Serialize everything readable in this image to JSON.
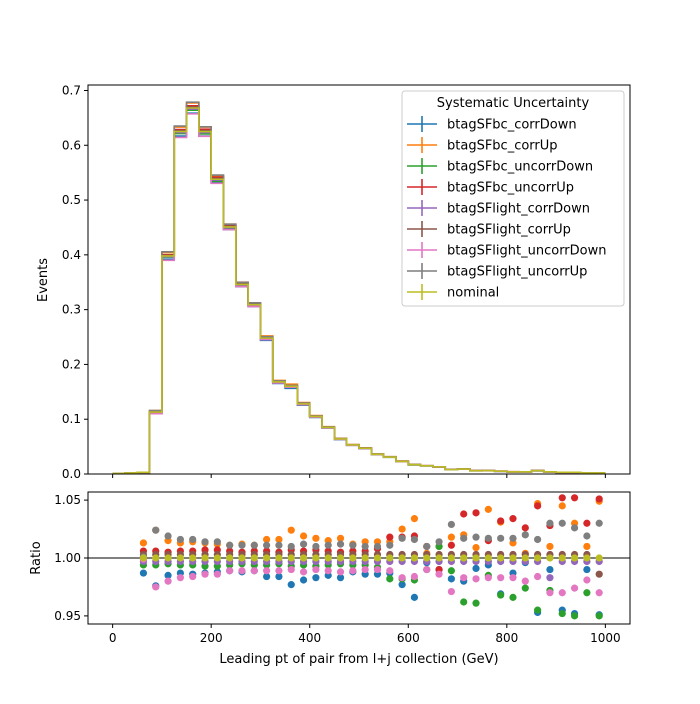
{
  "chart_data": [
    {
      "type": "line",
      "subtype": "step-histogram",
      "ylabel": "Events",
      "xlim": [
        -50,
        1050
      ],
      "ylim": [
        0,
        0.71
      ],
      "xticks": [
        0,
        200,
        400,
        600,
        800,
        1000
      ],
      "yticks": [
        "0.0",
        "0.1",
        "0.2",
        "0.3",
        "0.4",
        "0.5",
        "0.6",
        "0.7"
      ],
      "bin_edges": [
        0,
        25,
        50,
        75,
        100,
        125,
        150,
        175,
        200,
        225,
        250,
        275,
        300,
        325,
        350,
        375,
        400,
        425,
        450,
        475,
        500,
        525,
        550,
        575,
        600,
        625,
        650,
        675,
        700,
        725,
        750,
        775,
        800,
        825,
        850,
        875,
        900,
        925,
        950,
        975,
        1000
      ],
      "nominal": [
        0.001,
        0.002,
        0.003,
        0.113,
        0.398,
        0.625,
        0.668,
        0.625,
        0.538,
        0.451,
        0.346,
        0.309,
        0.248,
        0.168,
        0.16,
        0.128,
        0.105,
        0.085,
        0.064,
        0.053,
        0.047,
        0.036,
        0.031,
        0.023,
        0.017,
        0.015,
        0.013,
        0.008,
        0.009,
        0.006,
        0.006,
        0.005,
        0.004,
        0.004,
        0.006,
        0.004,
        0.003,
        0.003,
        0.002,
        0.002
      ],
      "legend": {
        "title": "Systematic Uncertainty",
        "placement": "upper right",
        "entries": [
          "btagSFbc_corrDown",
          "btagSFbc_corrUp",
          "btagSFbc_uncorrDown",
          "btagSFbc_uncorrUp",
          "btagSFlight_corrDown",
          "btagSFlight_corrUp",
          "btagSFlight_uncorrDown",
          "btagSFlight_uncorrUp",
          "nominal"
        ]
      }
    },
    {
      "type": "scatter",
      "xlabel": "Leading pt of pair from l+j collection (GeV)",
      "ylabel": "Ratio",
      "xlim": [
        -50,
        1050
      ],
      "ylim": [
        0.943,
        1.057
      ],
      "xticks": [
        0,
        200,
        400,
        600,
        800,
        1000
      ],
      "yticks": [
        "0.95",
        "1.00",
        "1.05"
      ],
      "reference_line": 1.0,
      "x": [
        62.5,
        87.5,
        112.5,
        137.5,
        162.5,
        187.5,
        212.5,
        237.5,
        262.5,
        287.5,
        312.5,
        337.5,
        362.5,
        387.5,
        412.5,
        437.5,
        462.5,
        487.5,
        512.5,
        537.5,
        562.5,
        587.5,
        612.5,
        637.5,
        662.5,
        687.5,
        712.5,
        737.5,
        762.5,
        787.5,
        812.5,
        837.5,
        862.5,
        887.5,
        912.5,
        937.5,
        962.5,
        987.5
      ],
      "series": [
        {
          "name": "btagSFbc_corrDown",
          "color": "#1f77b4",
          "values": [
            0.987,
            0.976,
            0.985,
            0.987,
            0.986,
            0.987,
            0.988,
            0.989,
            0.988,
            0.989,
            0.984,
            0.984,
            0.977,
            0.981,
            0.983,
            0.985,
            0.983,
            0.988,
            0.986,
            0.986,
            0.987,
            0.977,
            0.966,
            0.996,
            0.99,
            0.982,
            0.98,
            0.991,
            0.994,
            0.969,
            0.987,
            0.996,
            0.953,
            0.99,
            0.955,
            0.952,
            0.99,
            0.951
          ]
        },
        {
          "name": "btagSFbc_corrUp",
          "color": "#ff7f0e",
          "values": [
            1.013,
            1.024,
            1.015,
            1.013,
            1.014,
            1.013,
            1.012,
            1.011,
            1.012,
            1.011,
            1.016,
            1.016,
            1.024,
            1.019,
            1.017,
            1.015,
            1.017,
            1.012,
            1.014,
            1.014,
            1.014,
            1.025,
            1.034,
            1.004,
            1.01,
            1.018,
            1.02,
            1.009,
            1.042,
            1.031,
            1.013,
            1.004,
            1.047,
            1.01,
            1.045,
            1.03,
            1.01,
            1.049
          ]
        },
        {
          "name": "btagSFbc_uncorrDown",
          "color": "#2ca02c",
          "values": [
            0.994,
            0.994,
            0.995,
            0.994,
            0.994,
            0.993,
            0.993,
            0.994,
            0.995,
            0.994,
            0.994,
            0.995,
            0.993,
            0.994,
            0.993,
            0.994,
            0.995,
            0.994,
            0.994,
            0.992,
            0.982,
            0.982,
            0.981,
            0.99,
            1.01,
            0.989,
            0.962,
            0.961,
            0.985,
            0.968,
            0.966,
            0.974,
            0.955,
            0.972,
            0.952,
            0.95,
            0.97,
            0.95
          ]
        },
        {
          "name": "btagSFbc_uncorrUp",
          "color": "#d62728",
          "values": [
            1.006,
            1.006,
            1.005,
            1.006,
            1.006,
            1.007,
            1.007,
            1.006,
            1.005,
            1.006,
            1.006,
            1.005,
            1.007,
            1.006,
            1.007,
            1.006,
            1.005,
            1.006,
            1.006,
            1.008,
            1.018,
            1.018,
            1.019,
            1.01,
            0.99,
            1.011,
            1.038,
            1.039,
            1.015,
            1.032,
            1.034,
            1.026,
            1.045,
            1.028,
            1.052,
            1.052,
            1.03,
            1.051
          ]
        },
        {
          "name": "btagSFlight_corrDown",
          "color": "#9467bd",
          "values": [
            0.997,
            0.997,
            0.997,
            0.997,
            0.997,
            0.997,
            0.997,
            0.997,
            0.997,
            0.997,
            0.997,
            0.997,
            0.997,
            0.997,
            0.997,
            0.997,
            0.997,
            0.997,
            0.997,
            0.997,
            0.997,
            0.997,
            0.997,
            0.997,
            0.997,
            0.997,
            0.997,
            0.997,
            0.997,
            0.997,
            0.997,
            0.997,
            0.997,
            0.983,
            0.997,
            0.997,
            0.997,
            0.997
          ]
        },
        {
          "name": "btagSFlight_corrUp",
          "color": "#8c564b",
          "values": [
            1.003,
            1.003,
            1.003,
            1.003,
            1.003,
            1.003,
            1.003,
            1.003,
            1.003,
            1.003,
            1.003,
            1.003,
            1.003,
            1.003,
            1.003,
            1.003,
            1.003,
            1.003,
            1.003,
            1.003,
            1.003,
            1.003,
            1.003,
            1.003,
            1.003,
            1.003,
            1.003,
            1.003,
            1.003,
            1.003,
            1.003,
            1.003,
            1.003,
            1.003,
            1.003,
            1.003,
            1.003,
            0.986
          ]
        },
        {
          "name": "btagSFlight_uncorrDown",
          "color": "#e377c2",
          "values": [
            0.999,
            0.975,
            0.98,
            0.983,
            0.984,
            0.986,
            0.986,
            0.989,
            0.989,
            0.989,
            0.989,
            0.989,
            0.99,
            0.988,
            0.99,
            0.989,
            0.988,
            0.989,
            0.99,
            0.99,
            0.989,
            0.983,
            0.984,
            0.99,
            0.986,
            0.971,
            0.983,
            0.982,
            0.983,
            0.983,
            0.983,
            0.98,
            0.984,
            0.97,
            0.97,
            0.974,
            0.981,
            0.97
          ]
        },
        {
          "name": "btagSFlight_uncorrUp",
          "color": "#7f7f7f",
          "values": [
            1.001,
            1.024,
            1.019,
            1.016,
            1.016,
            1.014,
            1.014,
            1.011,
            1.011,
            1.011,
            1.011,
            1.011,
            1.01,
            1.012,
            1.01,
            1.011,
            1.012,
            1.011,
            1.01,
            1.01,
            1.011,
            1.017,
            1.016,
            1.01,
            1.014,
            1.029,
            1.017,
            1.018,
            1.017,
            1.017,
            1.017,
            1.02,
            1.016,
            1.03,
            1.03,
            1.026,
            1.019,
            1.03
          ]
        },
        {
          "name": "nominal",
          "color": "#bcbd22",
          "values": [
            1.0,
            1.0,
            1.0,
            1.0,
            1.0,
            1.0,
            1.0,
            1.0,
            1.0,
            1.0,
            1.0,
            1.0,
            1.0,
            1.0,
            1.0,
            1.0,
            1.0,
            1.0,
            1.0,
            1.0,
            1.0,
            1.0,
            1.0,
            1.0,
            1.0,
            1.0,
            1.0,
            1.0,
            1.0,
            1.0,
            1.0,
            1.0,
            1.0,
            1.0,
            1.0,
            1.0,
            1.0,
            1.0
          ]
        }
      ]
    }
  ]
}
